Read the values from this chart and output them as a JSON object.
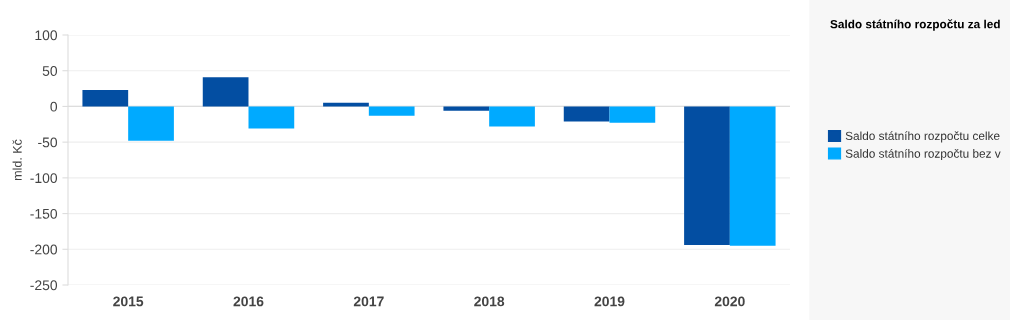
{
  "chart_data": {
    "type": "bar",
    "categories": [
      "2015",
      "2016",
      "2017",
      "2018",
      "2019",
      "2020"
    ],
    "series": [
      {
        "name": "Saldo státního rozpočtu celke",
        "color": "#034ea2",
        "values": [
          23,
          41,
          5,
          -6,
          -21,
          -194
        ]
      },
      {
        "name": "Saldo státního rozpočtu bez v",
        "color": "#00aaff",
        "values": [
          -48,
          -31,
          -13,
          -28,
          -23,
          -195
        ]
      }
    ],
    "ylabel": "mld. Kč",
    "legend_title": "Saldo státního rozpočtu za led",
    "ylim": [
      -250,
      100
    ],
    "yticks": [
      -250,
      -200,
      -150,
      -100,
      -50,
      0,
      50,
      100
    ],
    "grid": "y",
    "legend": "right"
  }
}
